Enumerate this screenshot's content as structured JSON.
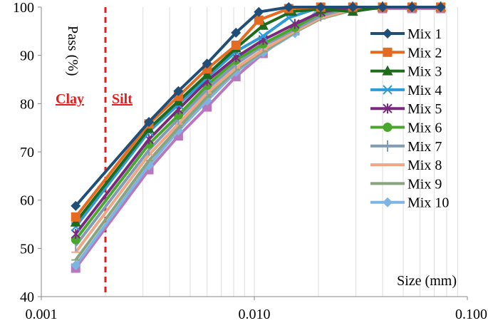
{
  "chart_data": {
    "type": "line",
    "x_scale": "log",
    "xlabel": "Size (mm)",
    "ylabel": "Pass (%)",
    "xlim": [
      0.001,
      0.1
    ],
    "ylim": [
      40,
      100
    ],
    "x_ticks": [
      0.001,
      0.01,
      0.1
    ],
    "x_tick_labels": [
      "0.001",
      "0.010",
      "0.100"
    ],
    "y_ticks": [
      40,
      50,
      60,
      70,
      80,
      90,
      100
    ],
    "y_tick_labels": [
      "40",
      "50",
      "60",
      "70",
      "80",
      "90",
      "100"
    ],
    "grid": "vertical-minor-log",
    "legend_position": "right",
    "annotations": {
      "boundary_x": 0.002,
      "boundary_color": "#e02020",
      "left_label": "Clay",
      "right_label": "Silt"
    },
    "series": [
      {
        "name": "Mix 1",
        "color": "#1f4e79",
        "marker": "diamond",
        "x": [
          0.00145,
          0.0032,
          0.0044,
          0.006,
          0.0082,
          0.0105,
          0.0145,
          0.0205,
          0.029,
          0.04,
          0.055,
          0.075
        ],
        "values": [
          58.8,
          76.2,
          82.6,
          88.3,
          94.7,
          99.0,
          100,
          100,
          100,
          100,
          100,
          100
        ]
      },
      {
        "name": "Mix 2",
        "color": "#e36c22",
        "marker": "square",
        "x": [
          0.00145,
          0.0032,
          0.0044,
          0.006,
          0.0082,
          0.0105,
          0.0145,
          0.0205,
          0.029,
          0.04,
          0.055,
          0.075
        ],
        "values": [
          56.5,
          75.8,
          81.5,
          87.2,
          92.1,
          97.3,
          99.7,
          100,
          100,
          100,
          100,
          100
        ]
      },
      {
        "name": "Mix 3",
        "color": "#1e6b1e",
        "marker": "triangle",
        "x": [
          0.00145,
          0.0032,
          0.0044,
          0.006,
          0.0082,
          0.011,
          0.015,
          0.0205,
          0.029,
          0.04,
          0.055,
          0.075
        ],
        "values": [
          55.4,
          74.8,
          80.5,
          86.0,
          91.5,
          96.2,
          99.1,
          99.6,
          99.1,
          100,
          100,
          100
        ]
      },
      {
        "name": "Mix 4",
        "color": "#2e9bd6",
        "marker": "x",
        "x": [
          0.00145,
          0.0032,
          0.0044,
          0.006,
          0.0082,
          0.011,
          0.0145,
          0.0205,
          0.029,
          0.04,
          0.055,
          0.075
        ],
        "values": [
          54.5,
          74.2,
          79.8,
          85.4,
          90.8,
          94.0,
          97.8,
          100,
          100,
          100,
          100,
          100
        ]
      },
      {
        "name": "Mix 5",
        "color": "#7a2a7e",
        "marker": "star",
        "x": [
          0.00145,
          0.0032,
          0.0044,
          0.006,
          0.0082,
          0.011,
          0.0155,
          0.0205,
          0.029,
          0.04,
          0.055,
          0.075
        ],
        "values": [
          53.0,
          72.6,
          78.8,
          84.7,
          89.6,
          93.2,
          96.5,
          99.0,
          100,
          100,
          100,
          100
        ]
      },
      {
        "name": "Mix 6",
        "color": "#4aa72e",
        "marker": "circle",
        "x": [
          0.00145,
          0.0032,
          0.0044,
          0.006,
          0.0082,
          0.011,
          0.0155,
          0.0205,
          0.029,
          0.04,
          0.055,
          0.075
        ],
        "values": [
          51.8,
          71.6,
          77.6,
          83.8,
          89.0,
          92.4,
          95.8,
          98.8,
          100,
          100,
          100,
          100
        ]
      },
      {
        "name": "Mix 7",
        "color": "#7f9bb5",
        "marker": "plus",
        "x": [
          0.00145,
          0.0032,
          0.0044,
          0.006,
          0.0082,
          0.011,
          0.0155,
          0.0205,
          0.029,
          0.04,
          0.055,
          0.075
        ],
        "values": [
          50.6,
          70.4,
          76.8,
          83.0,
          88.2,
          92.0,
          95.4,
          98.2,
          100,
          100,
          100,
          100
        ]
      },
      {
        "name": "Mix 8",
        "color": "#f0a586",
        "marker": "dash",
        "x": [
          0.00145,
          0.0032,
          0.0044,
          0.006,
          0.0082,
          0.011,
          0.0155,
          0.0205,
          0.029,
          0.04,
          0.055,
          0.075
        ],
        "values": [
          49.2,
          69.4,
          75.8,
          82.2,
          87.4,
          91.2,
          95.0,
          97.8,
          99.6,
          100,
          100,
          100
        ]
      },
      {
        "name": "Mix 9",
        "color": "#88a47c",
        "marker": "dash",
        "x": [
          0.00145,
          0.0032,
          0.0044,
          0.006,
          0.0082,
          0.011,
          0.0155,
          0.0205,
          0.029,
          0.04,
          0.055,
          0.075
        ],
        "values": [
          47.6,
          68.2,
          75.0,
          81.4,
          87.0,
          90.8,
          94.8,
          97.6,
          99.4,
          100,
          100,
          100
        ]
      },
      {
        "name": "Mix 10",
        "color": "#7eb4e3",
        "marker": "diamond",
        "x": [
          0.00145,
          0.0032,
          0.0044,
          0.006,
          0.0082,
          0.011,
          0.0155,
          0.0205,
          0.029,
          0.04,
          0.055,
          0.075
        ],
        "values": [
          46.5,
          67.2,
          74.4,
          80.6,
          86.6,
          90.6,
          94.6,
          100,
          100,
          100,
          100,
          100
        ]
      },
      {
        "name": "",
        "color": "#b978bd",
        "marker": "square",
        "x": [
          0.00145,
          0.0032,
          0.0044,
          0.006,
          0.0082,
          0.011,
          0.0155,
          0.0205,
          0.029,
          0.04,
          0.055,
          0.075
        ],
        "values": [
          45.9,
          66.3,
          73.3,
          79.3,
          85.6,
          90.4,
          95.1,
          98.4,
          99.7,
          99.7,
          99.7,
          99.7
        ]
      }
    ]
  }
}
